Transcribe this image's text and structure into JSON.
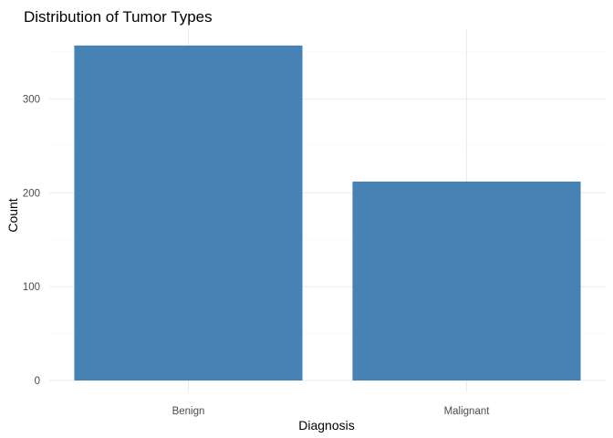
{
  "colors": {
    "bar": "#4682B4",
    "grid_major": "#ebebeb",
    "grid_minor": "#f5f5f5",
    "tick_text": "#4d4d4d"
  },
  "chart_data": {
    "type": "bar",
    "title": "Distribution of Tumor Types",
    "xlabel": "Diagnosis",
    "ylabel": "Count",
    "categories": [
      "Benign",
      "Malignant"
    ],
    "values": [
      357,
      212
    ],
    "ylim": [
      0,
      375
    ],
    "yticks": [
      0,
      100,
      200,
      300
    ],
    "yticklabels": [
      "0",
      "100",
      "200",
      "300"
    ],
    "grid": true
  }
}
